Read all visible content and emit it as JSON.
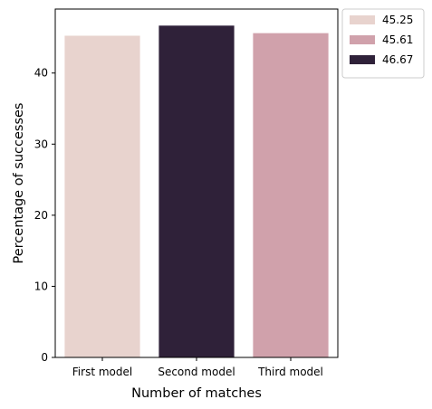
{
  "chart_data": {
    "type": "bar",
    "categories": [
      "First model",
      "Second model",
      "Third model"
    ],
    "values": [
      45.25,
      46.67,
      45.61
    ],
    "bar_colors": [
      "#e8d3ce",
      "#2f2139",
      "#d0a1ab"
    ],
    "xlabel": "Number of matches",
    "ylabel": "Percentage of successes",
    "ylim": [
      0,
      49
    ],
    "yticks": [
      0,
      10,
      20,
      30,
      40
    ],
    "grid": false,
    "legend": {
      "placement": "outside top-right",
      "entries": [
        {
          "label": "45.25",
          "color": "#e8d3ce"
        },
        {
          "label": "45.61",
          "color": "#d0a1ab"
        },
        {
          "label": "46.67",
          "color": "#2f2139"
        }
      ]
    }
  }
}
